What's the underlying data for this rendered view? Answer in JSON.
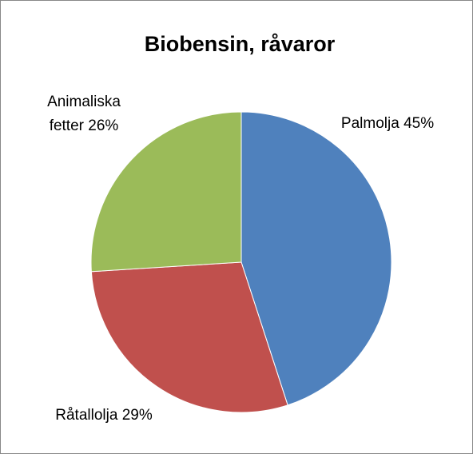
{
  "chart_data": {
    "type": "pie",
    "title": "Biobensin, råvaror",
    "categories": [
      "Palmolja",
      "Råtallolja",
      "Animaliska fetter"
    ],
    "values": [
      45,
      29,
      26
    ],
    "value_labels": [
      "45%",
      "29%",
      "26%"
    ],
    "colors": [
      "#4f81bd",
      "#c0504d",
      "#9bbb59"
    ]
  }
}
